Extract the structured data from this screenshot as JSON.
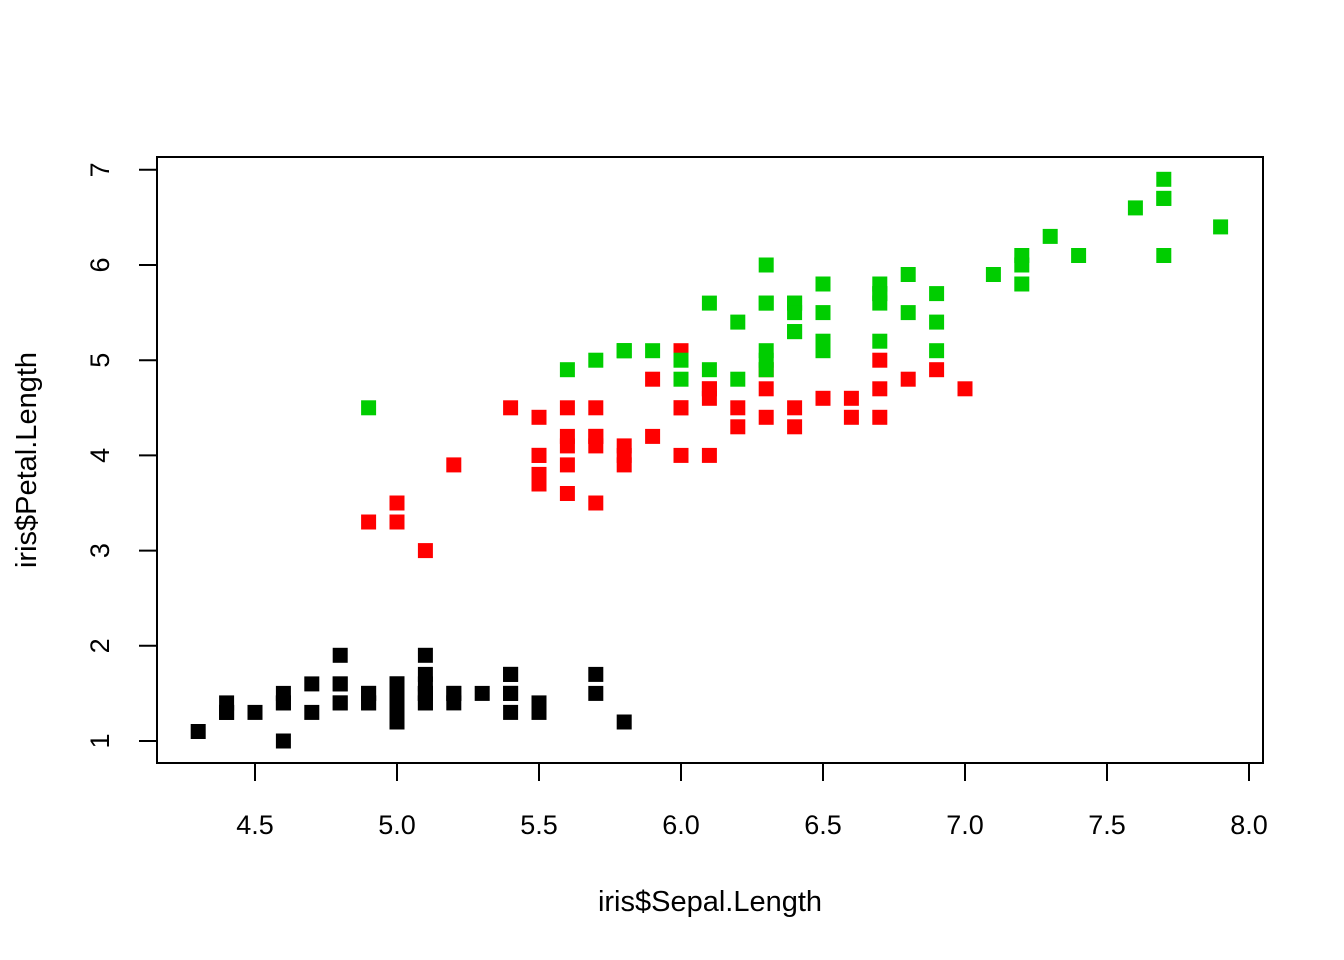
{
  "chart_data": {
    "type": "scatter",
    "title": "",
    "xlabel": "iris$Sepal.Length",
    "ylabel": "iris$Petal.Length",
    "xlim": [
      4.3,
      7.9
    ],
    "ylim": [
      1.0,
      6.9
    ],
    "xticks": [
      "4.5",
      "5.0",
      "5.5",
      "6.0",
      "6.5",
      "7.0",
      "7.5",
      "8.0"
    ],
    "yticks": [
      "1",
      "2",
      "3",
      "4",
      "5",
      "6",
      "7"
    ],
    "marker": "filled-square",
    "grid": false,
    "legend": "none",
    "series": [
      {
        "color": "#000000",
        "points": [
          [
            5.1,
            1.4
          ],
          [
            4.9,
            1.4
          ],
          [
            4.7,
            1.3
          ],
          [
            4.6,
            1.5
          ],
          [
            5.0,
            1.4
          ],
          [
            5.4,
            1.7
          ],
          [
            4.6,
            1.4
          ],
          [
            5.0,
            1.5
          ],
          [
            4.4,
            1.4
          ],
          [
            4.9,
            1.5
          ],
          [
            5.4,
            1.5
          ],
          [
            4.8,
            1.6
          ],
          [
            4.8,
            1.4
          ],
          [
            4.3,
            1.1
          ],
          [
            5.8,
            1.2
          ],
          [
            5.7,
            1.5
          ],
          [
            5.4,
            1.3
          ],
          [
            5.1,
            1.4
          ],
          [
            5.7,
            1.7
          ],
          [
            5.1,
            1.5
          ],
          [
            5.4,
            1.7
          ],
          [
            5.1,
            1.5
          ],
          [
            4.6,
            1.0
          ],
          [
            5.1,
            1.7
          ],
          [
            4.8,
            1.9
          ],
          [
            5.0,
            1.6
          ],
          [
            5.0,
            1.6
          ],
          [
            5.2,
            1.5
          ],
          [
            5.2,
            1.4
          ],
          [
            4.7,
            1.6
          ],
          [
            4.8,
            1.6
          ],
          [
            5.4,
            1.5
          ],
          [
            5.2,
            1.5
          ],
          [
            5.5,
            1.4
          ],
          [
            4.9,
            1.5
          ],
          [
            5.0,
            1.2
          ],
          [
            5.5,
            1.3
          ],
          [
            4.9,
            1.4
          ],
          [
            4.4,
            1.3
          ],
          [
            5.1,
            1.5
          ],
          [
            5.0,
            1.3
          ],
          [
            4.5,
            1.3
          ],
          [
            4.4,
            1.3
          ],
          [
            5.0,
            1.6
          ],
          [
            5.1,
            1.9
          ],
          [
            4.8,
            1.4
          ],
          [
            5.1,
            1.6
          ],
          [
            4.6,
            1.4
          ],
          [
            5.3,
            1.5
          ],
          [
            5.0,
            1.4
          ]
        ]
      },
      {
        "color": "#ff0000",
        "points": [
          [
            7.0,
            4.7
          ],
          [
            6.4,
            4.5
          ],
          [
            6.9,
            4.9
          ],
          [
            5.5,
            4.0
          ],
          [
            6.5,
            4.6
          ],
          [
            5.7,
            4.5
          ],
          [
            6.3,
            4.7
          ],
          [
            4.9,
            3.3
          ],
          [
            6.6,
            4.6
          ],
          [
            5.2,
            3.9
          ],
          [
            5.0,
            3.5
          ],
          [
            5.9,
            4.2
          ],
          [
            6.0,
            4.0
          ],
          [
            6.1,
            4.7
          ],
          [
            5.6,
            3.6
          ],
          [
            6.7,
            4.4
          ],
          [
            5.6,
            4.5
          ],
          [
            5.8,
            4.1
          ],
          [
            6.2,
            4.5
          ],
          [
            5.6,
            3.9
          ],
          [
            5.9,
            4.8
          ],
          [
            6.1,
            4.0
          ],
          [
            6.3,
            4.9
          ],
          [
            6.1,
            4.7
          ],
          [
            6.4,
            4.3
          ],
          [
            6.6,
            4.4
          ],
          [
            6.8,
            4.8
          ],
          [
            6.7,
            5.0
          ],
          [
            6.0,
            4.5
          ],
          [
            5.7,
            3.5
          ],
          [
            5.5,
            3.8
          ],
          [
            5.5,
            3.7
          ],
          [
            5.8,
            3.9
          ],
          [
            6.0,
            5.1
          ],
          [
            5.4,
            4.5
          ],
          [
            6.0,
            4.5
          ],
          [
            6.7,
            4.7
          ],
          [
            6.3,
            4.4
          ],
          [
            5.6,
            4.1
          ],
          [
            5.5,
            4.0
          ],
          [
            5.5,
            4.4
          ],
          [
            6.1,
            4.6
          ],
          [
            5.8,
            4.0
          ],
          [
            5.0,
            3.3
          ],
          [
            5.6,
            4.2
          ],
          [
            5.7,
            4.2
          ],
          [
            5.7,
            4.2
          ],
          [
            6.2,
            4.3
          ],
          [
            5.1,
            3.0
          ],
          [
            5.7,
            4.1
          ]
        ]
      },
      {
        "color": "#00cd00",
        "points": [
          [
            6.3,
            6.0
          ],
          [
            5.8,
            5.1
          ],
          [
            7.1,
            5.9
          ],
          [
            6.3,
            5.6
          ],
          [
            6.5,
            5.8
          ],
          [
            7.6,
            6.6
          ],
          [
            4.9,
            4.5
          ],
          [
            7.3,
            6.3
          ],
          [
            6.7,
            5.8
          ],
          [
            7.2,
            6.1
          ],
          [
            6.5,
            5.1
          ],
          [
            6.4,
            5.3
          ],
          [
            6.8,
            5.5
          ],
          [
            5.7,
            5.0
          ],
          [
            5.8,
            5.1
          ],
          [
            6.4,
            5.3
          ],
          [
            6.5,
            5.5
          ],
          [
            7.7,
            6.7
          ],
          [
            7.7,
            6.9
          ],
          [
            6.0,
            5.0
          ],
          [
            6.9,
            5.7
          ],
          [
            5.6,
            4.9
          ],
          [
            7.7,
            6.7
          ],
          [
            6.3,
            4.9
          ],
          [
            6.7,
            5.7
          ],
          [
            7.2,
            6.0
          ],
          [
            6.2,
            4.8
          ],
          [
            6.1,
            4.9
          ],
          [
            6.4,
            5.6
          ],
          [
            7.2,
            5.8
          ],
          [
            7.4,
            6.1
          ],
          [
            7.9,
            6.4
          ],
          [
            6.4,
            5.6
          ],
          [
            6.3,
            5.1
          ],
          [
            6.1,
            5.6
          ],
          [
            7.7,
            6.1
          ],
          [
            6.3,
            5.6
          ],
          [
            6.4,
            5.5
          ],
          [
            6.0,
            4.8
          ],
          [
            6.9,
            5.4
          ],
          [
            6.7,
            5.6
          ],
          [
            6.9,
            5.1
          ],
          [
            5.8,
            5.1
          ],
          [
            6.8,
            5.9
          ],
          [
            6.7,
            5.7
          ],
          [
            6.7,
            5.2
          ],
          [
            6.3,
            5.0
          ],
          [
            6.5,
            5.2
          ],
          [
            6.2,
            5.4
          ],
          [
            5.9,
            5.1
          ]
        ]
      }
    ]
  }
}
